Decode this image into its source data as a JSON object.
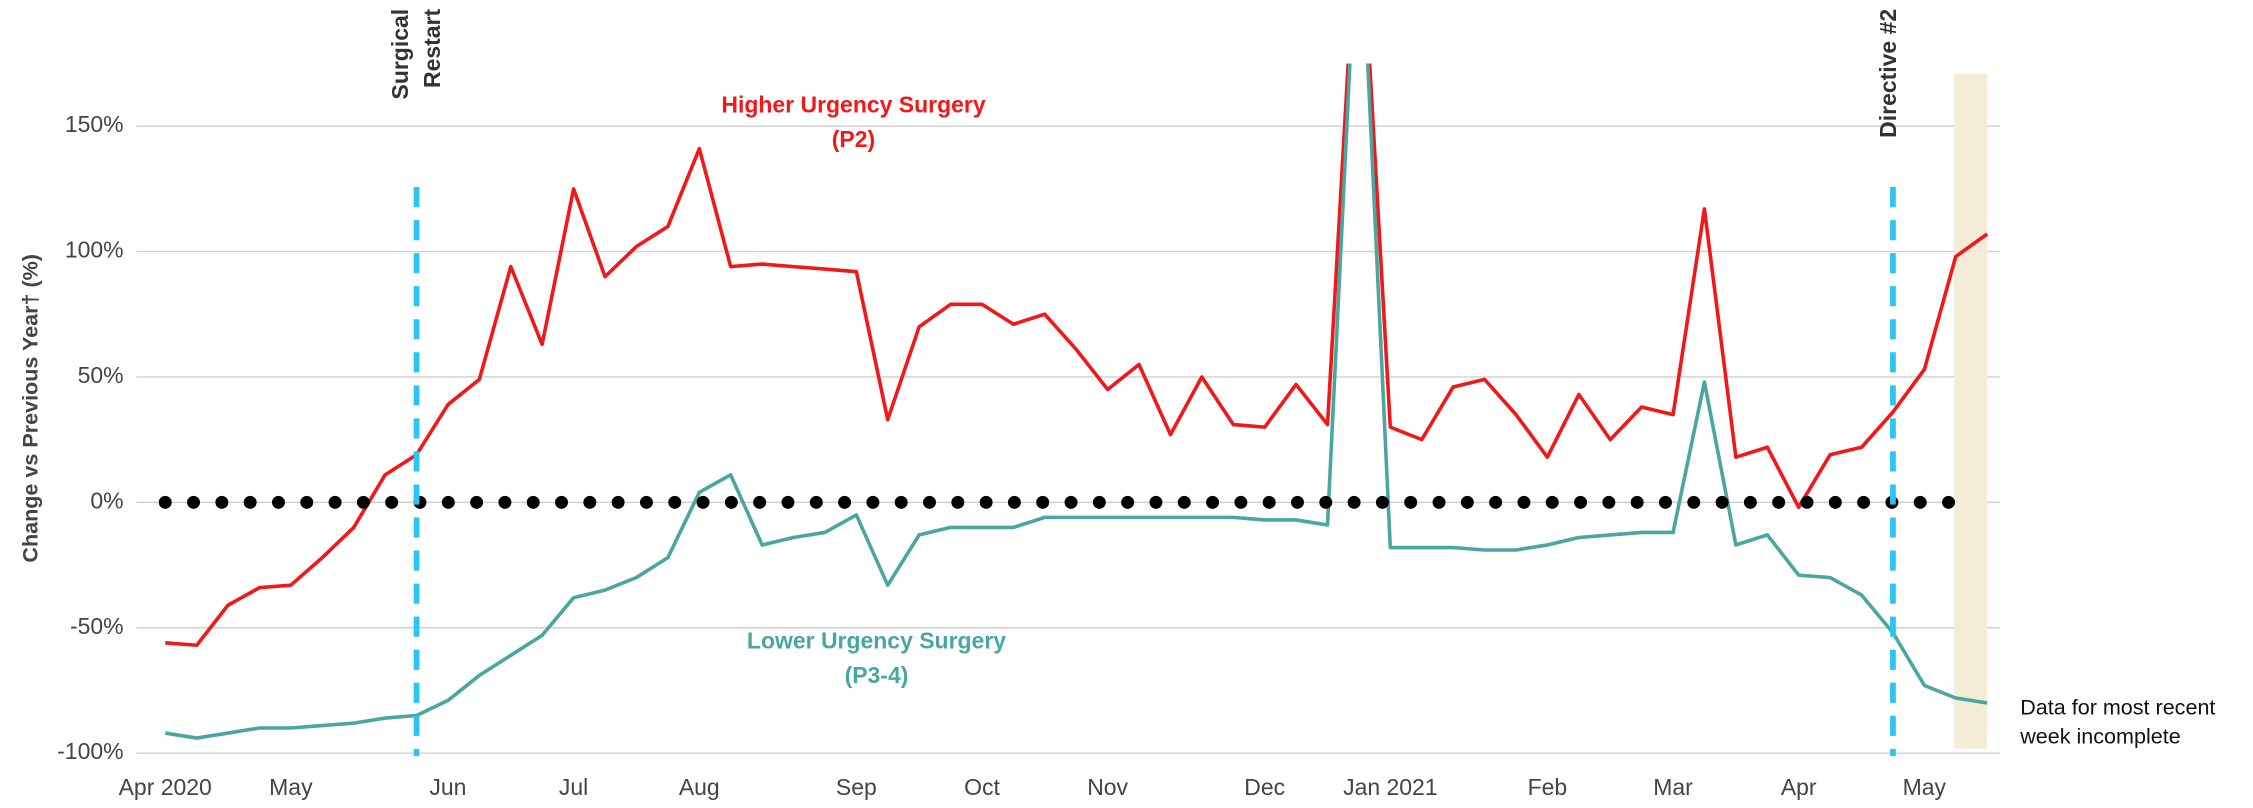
{
  "chart_data": {
    "type": "line",
    "y_label": "Change vs Previous Year† (%)",
    "categories": [
      "Apr 2020",
      null,
      null,
      null,
      "May",
      null,
      null,
      null,
      null,
      "Jun",
      null,
      null,
      null,
      "Jul",
      null,
      null,
      null,
      "Aug",
      null,
      null,
      null,
      null,
      "Sep",
      null,
      null,
      null,
      "Oct",
      null,
      null,
      null,
      "Nov",
      null,
      null,
      null,
      null,
      "Dec",
      null,
      null,
      null,
      "Jan 2021",
      null,
      null,
      null,
      null,
      "Feb",
      null,
      null,
      null,
      "Mar",
      null,
      null,
      null,
      "Apr",
      null,
      null,
      null,
      "May",
      null,
      null
    ],
    "series": [
      {
        "name": "Higher Urgency Surgery (P2)",
        "color": "#f01818",
        "values": [
          -56,
          -57,
          -41,
          -34,
          -33,
          -22,
          -10,
          11,
          19,
          39,
          49,
          94,
          63,
          125,
          90,
          102,
          110,
          141,
          94,
          95,
          94,
          93,
          92,
          33,
          70,
          79,
          79,
          71,
          75,
          61,
          45,
          55,
          27,
          50,
          31,
          30,
          47,
          31,
          250,
          30,
          25,
          46,
          49,
          35,
          18,
          43,
          25,
          38,
          35,
          117,
          18,
          22,
          -2,
          19,
          22,
          36,
          53,
          98,
          107
        ]
      },
      {
        "name": "Lower Urgency Surgery (P3-4)",
        "color": "#4aa6a0",
        "values": [
          -92,
          -94,
          -92,
          -90,
          -90,
          -89,
          -88,
          -86,
          -85,
          -79,
          -69,
          -61,
          -53,
          -38,
          -35,
          -30,
          -22,
          4,
          11,
          -17,
          -14,
          -12,
          -5,
          -33,
          -13,
          -10,
          -10,
          -10,
          -6,
          -6,
          -6,
          -6,
          -6,
          -6,
          -6,
          -7,
          -7,
          -9,
          250,
          -18,
          -18,
          -18,
          -19,
          -19,
          -17,
          -14,
          -13,
          -12,
          -12,
          48,
          -17,
          -13,
          -29,
          -30,
          -37,
          -52,
          -73,
          -78,
          -80
        ]
      }
    ],
    "ylim": [
      -100,
      175
    ],
    "yticks": [
      {
        "value": -100,
        "label": "-100%"
      },
      {
        "value": -50,
        "label": "-50%"
      },
      {
        "value": 0,
        "label": "0%"
      },
      {
        "value": 50,
        "label": "50%"
      },
      {
        "value": 100,
        "label": "100%"
      },
      {
        "value": 150,
        "label": "150%"
      }
    ],
    "grid": true,
    "annotations": [
      "Surgical Restart",
      "Directive #2"
    ],
    "note": "Data for most recent week incomplete"
  }
}
